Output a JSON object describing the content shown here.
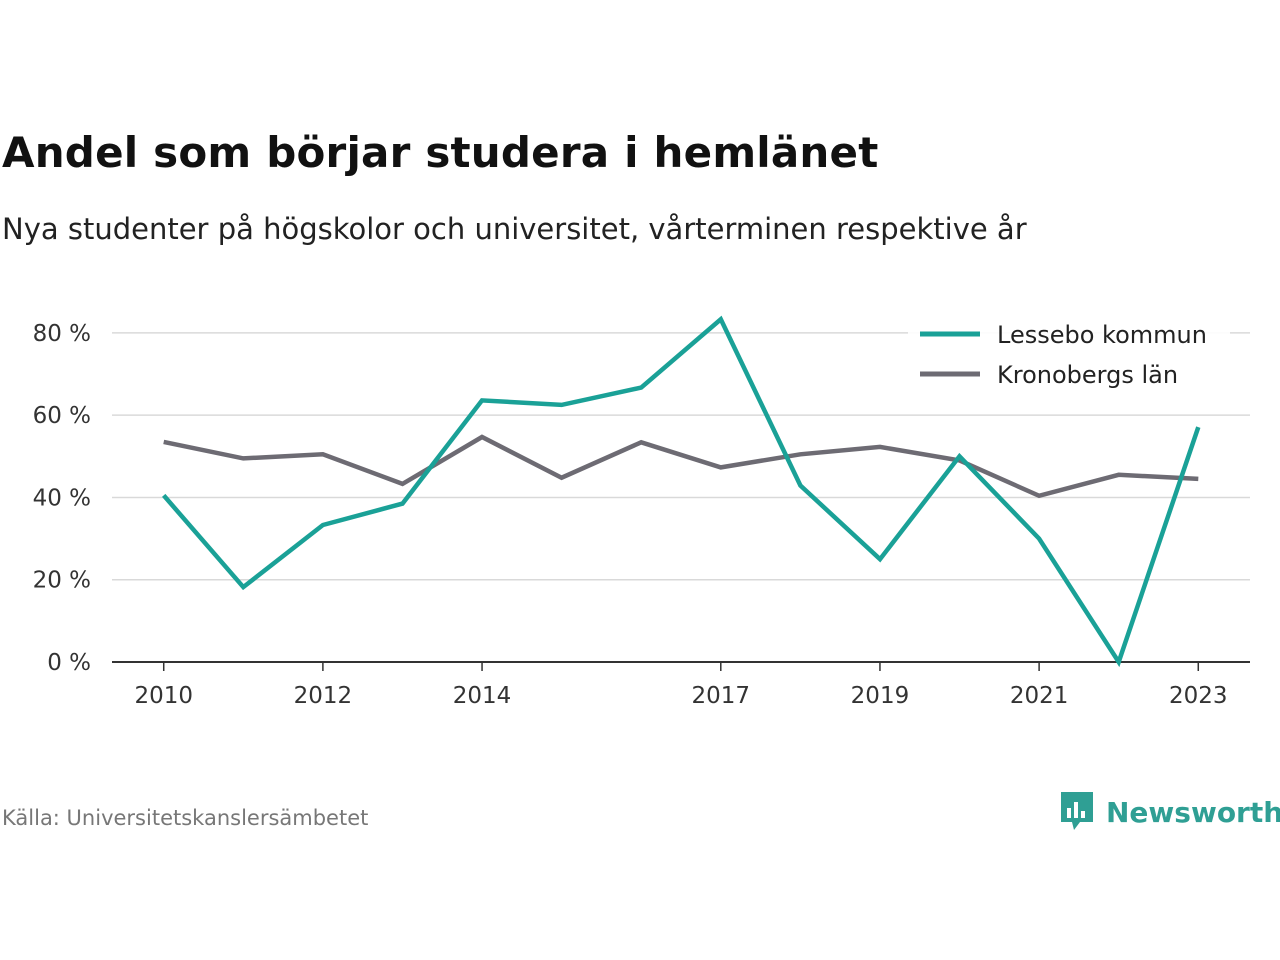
{
  "header": {
    "title": "Andel som börjar studera i hemlänet",
    "subtitle": "Nya studenter på högskolor och universitet, vårterminen respektive år"
  },
  "footer": {
    "source": "Källa: Universitetskanslersämbetet",
    "brand": "Newsworthy",
    "brand_icon": "bar-chart-speech-bubble-icon"
  },
  "chart_data": {
    "type": "line",
    "title": "",
    "xlabel": "",
    "ylabel": "",
    "x": [
      2010,
      2011,
      2012,
      2013,
      2014,
      2015,
      2016,
      2017,
      2018,
      2019,
      2020,
      2021,
      2022,
      2023
    ],
    "xticks": [
      2010,
      2012,
      2014,
      2017,
      2019,
      2021,
      2023
    ],
    "yticks": [
      0,
      20,
      40,
      60,
      80
    ],
    "ytick_suffix": " %",
    "ylim": [
      0,
      88
    ],
    "grid": true,
    "legend_position": "top-right",
    "series": [
      {
        "name": "Lessebo kommun",
        "color": "#1aa197",
        "values": [
          40.5,
          18.2,
          33.3,
          38.5,
          63.6,
          62.5,
          66.7,
          83.3,
          42.9,
          25.0,
          50.0,
          30.0,
          0.0,
          57.1
        ]
      },
      {
        "name": "Kronobergs län",
        "color": "#6d6b73",
        "values": [
          53.5,
          49.5,
          50.5,
          43.3,
          54.7,
          44.8,
          53.4,
          47.3,
          50.5,
          52.3,
          49.0,
          40.4,
          45.5,
          44.5
        ]
      }
    ]
  }
}
